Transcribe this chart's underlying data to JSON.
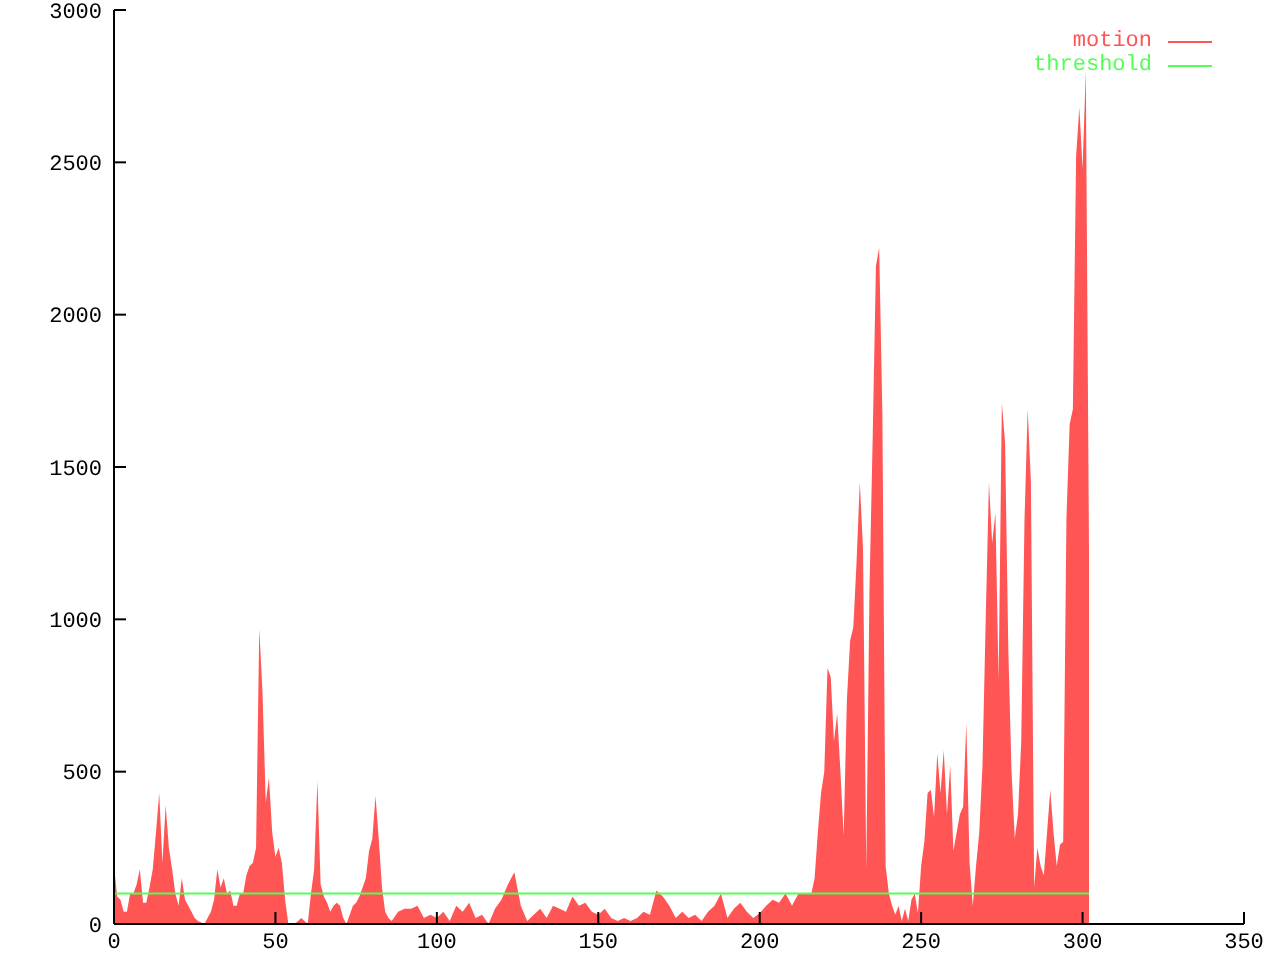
{
  "chart_data": {
    "type": "area",
    "xlim": [
      0,
      350
    ],
    "xticks": [
      0,
      50,
      100,
      150,
      200,
      250,
      300,
      350
    ],
    "ylim": [
      0,
      3000
    ],
    "yticks": [
      0,
      500,
      1000,
      1500,
      2000,
      2500,
      3000
    ],
    "grid": false,
    "legend": "top right",
    "series": [
      {
        "name": "motion",
        "color": "#ff5555",
        "x": [
          0,
          1,
          2,
          3,
          4,
          5,
          6,
          7,
          8,
          9,
          10,
          11,
          12,
          13,
          14,
          15,
          16,
          17,
          18,
          19,
          20,
          21,
          22,
          23,
          24,
          25,
          26,
          28,
          30,
          31,
          32,
          33,
          34,
          35,
          36,
          37,
          38,
          39,
          40,
          41,
          42,
          43,
          44,
          45,
          46,
          47,
          48,
          49,
          50,
          51,
          52,
          53,
          54,
          56,
          58,
          60,
          61,
          62,
          63,
          64,
          65,
          66,
          67,
          68,
          69,
          70,
          71,
          72,
          74,
          75,
          76,
          77,
          78,
          79,
          80,
          81,
          82,
          83,
          84,
          85,
          86,
          88,
          90,
          92,
          94,
          96,
          98,
          100,
          102,
          104,
          106,
          108,
          110,
          112,
          114,
          116,
          118,
          120,
          122,
          124,
          126,
          128,
          130,
          132,
          134,
          136,
          138,
          140,
          142,
          144,
          146,
          148,
          150,
          152,
          154,
          156,
          158,
          160,
          162,
          164,
          166,
          168,
          170,
          172,
          174,
          176,
          178,
          180,
          182,
          184,
          186,
          188,
          190,
          192,
          194,
          196,
          198,
          200,
          202,
          204,
          206,
          208,
          210,
          212,
          214,
          216,
          217,
          218,
          219,
          220,
          221,
          222,
          223,
          224,
          225,
          226,
          227,
          228,
          229,
          230,
          231,
          232,
          233,
          234,
          235,
          236,
          237,
          238,
          239,
          240,
          241,
          242,
          243,
          244,
          245,
          246,
          247,
          248,
          249,
          250,
          251,
          252,
          253,
          254,
          255,
          256,
          257,
          258,
          259,
          260,
          261,
          262,
          263,
          264,
          265,
          266,
          267,
          268,
          269,
          270,
          271,
          272,
          273,
          274,
          275,
          276,
          277,
          278,
          279,
          280,
          281,
          282,
          283,
          284,
          285,
          286,
          287,
          288,
          289,
          290,
          291,
          292,
          293,
          294,
          295,
          296,
          297,
          298,
          299,
          300,
          301,
          302
        ],
        "values": [
          190,
          90,
          80,
          40,
          40,
          100,
          100,
          130,
          180,
          70,
          70,
          120,
          180,
          300,
          430,
          200,
          390,
          250,
          180,
          100,
          60,
          150,
          80,
          60,
          40,
          20,
          10,
          0,
          40,
          80,
          180,
          120,
          150,
          100,
          110,
          60,
          60,
          100,
          100,
          160,
          190,
          200,
          250,
          970,
          760,
          400,
          480,
          300,
          220,
          250,
          200,
          80,
          0,
          0,
          20,
          0,
          100,
          180,
          470,
          130,
          90,
          70,
          40,
          60,
          70,
          60,
          20,
          0,
          60,
          70,
          90,
          120,
          150,
          240,
          280,
          420,
          280,
          120,
          40,
          20,
          10,
          40,
          50,
          50,
          60,
          20,
          30,
          20,
          40,
          10,
          60,
          40,
          70,
          20,
          30,
          0,
          50,
          80,
          130,
          170,
          60,
          10,
          30,
          50,
          20,
          60,
          50,
          40,
          90,
          60,
          70,
          40,
          30,
          50,
          20,
          10,
          20,
          10,
          20,
          40,
          30,
          110,
          90,
          60,
          20,
          40,
          20,
          30,
          10,
          40,
          60,
          100,
          20,
          50,
          70,
          40,
          20,
          35,
          60,
          80,
          70,
          100,
          60,
          100,
          100,
          100,
          150,
          300,
          430,
          500,
          840,
          810,
          600,
          690,
          500,
          290,
          735,
          930,
          975,
          1190,
          1450,
          1230,
          180,
          1100,
          1600,
          2160,
          2220,
          1670,
          190,
          100,
          60,
          30,
          60,
          10,
          50,
          10,
          80,
          100,
          35,
          190,
          270,
          430,
          440,
          350,
          560,
          430,
          570,
          360,
          520,
          240,
          300,
          360,
          385,
          660,
          200,
          60,
          190,
          300,
          520,
          1000,
          1450,
          1250,
          1350,
          800,
          1710,
          1580,
          900,
          500,
          280,
          360,
          600,
          1320,
          1690,
          1450,
          120,
          250,
          190,
          160,
          300,
          440,
          300,
          190,
          260,
          270,
          1330,
          1640,
          1690,
          2520,
          2680,
          2480,
          2800,
          1210
        ]
      },
      {
        "name": "threshold",
        "type": "line",
        "color": "#55ff55",
        "x": [
          0,
          302
        ],
        "values": [
          100,
          100
        ]
      }
    ]
  }
}
